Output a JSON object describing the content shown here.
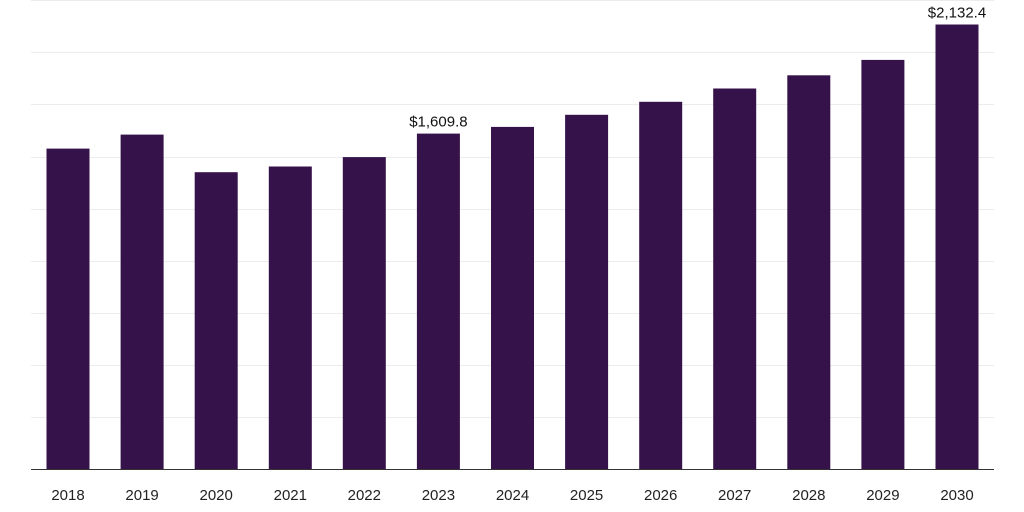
{
  "chart_data": {
    "type": "bar",
    "categories": [
      "2018",
      "2019",
      "2020",
      "2021",
      "2022",
      "2023",
      "2024",
      "2025",
      "2026",
      "2027",
      "2028",
      "2029",
      "2030"
    ],
    "values": [
      1538,
      1605,
      1425,
      1452,
      1497,
      1609.8,
      1642,
      1700,
      1762,
      1826,
      1889,
      1963,
      2132.4
    ],
    "data_labels": [
      {
        "index": 5,
        "text": "$1,609.8"
      },
      {
        "index": 12,
        "text": "$2,132.4"
      }
    ],
    "title": "",
    "xlabel": "",
    "ylabel": "",
    "ylim": [
      0,
      2250
    ],
    "grid": true,
    "bar_color": "#36124b",
    "grid_color": "#ececec",
    "axis_color": "#333333"
  }
}
